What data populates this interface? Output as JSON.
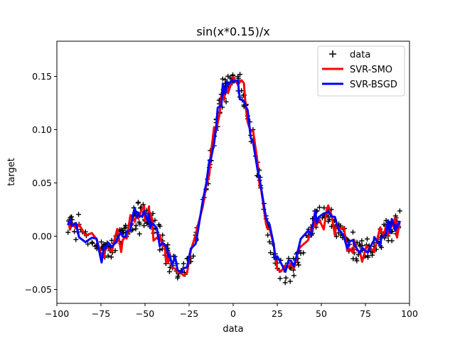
{
  "chart_data": {
    "type": "scatter",
    "title": "sin(x*0.15)/x",
    "xlabel": "data",
    "ylabel": "target",
    "xlim": [
      -100,
      100
    ],
    "ylim": [
      -0.063,
      0.183
    ],
    "xticks": [
      -100,
      -75,
      -50,
      -25,
      0,
      25,
      50,
      75,
      100
    ],
    "xtick_labels": [
      "−100",
      "−75",
      "−50",
      "−25",
      "0",
      "25",
      "50",
      "75",
      "100"
    ],
    "yticks": [
      -0.05,
      0.0,
      0.05,
      0.1,
      0.15
    ],
    "ytick_labels": [
      "−0.05",
      "0.00",
      "0.05",
      "0.10",
      "0.15"
    ],
    "grid": false,
    "legend_position": "top-right",
    "series": [
      {
        "name": "data",
        "kind": "scatter",
        "marker": "plus",
        "color": "#000000",
        "function": "sin(x*0.15)/x",
        "noise_amplitude": 0.012,
        "x_range": [
          -95,
          95
        ],
        "n_points": 400
      },
      {
        "name": "SVR-SMO",
        "kind": "line",
        "color": "#ff0000",
        "line_width": 3,
        "x_range": [
          -95,
          95
        ]
      },
      {
        "name": "SVR-BSGD",
        "kind": "line",
        "color": "#0000ff",
        "line_width": 3,
        "x_range": [
          -95,
          95
        ]
      }
    ]
  }
}
